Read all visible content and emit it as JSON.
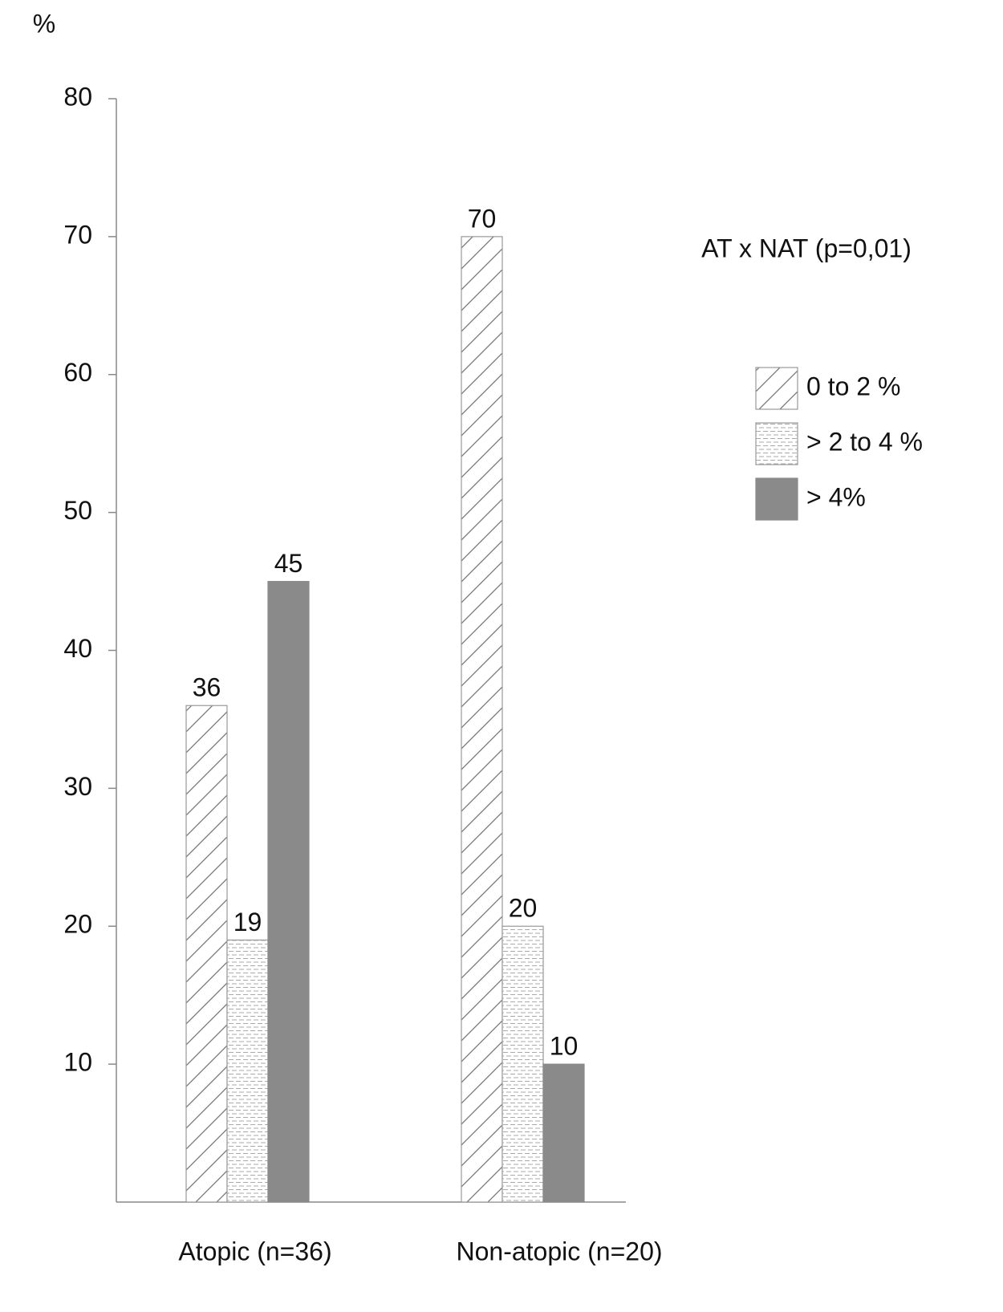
{
  "chart_data": {
    "type": "bar",
    "y_label": "%",
    "annotation": "AT x NAT (p=0,01)",
    "categories": [
      "Atopic (n=36)",
      "Non-atopic (n=20)"
    ],
    "series": [
      {
        "name": "0 to 2 %",
        "pattern": "hatch",
        "color": "#ffffff",
        "values": [
          36,
          70
        ]
      },
      {
        "name": "> 2 to 4 %",
        "pattern": "dash",
        "color": "#ffffff",
        "values": [
          19,
          20
        ]
      },
      {
        "name": "> 4%",
        "pattern": "solid",
        "color": "#8a8a8a",
        "values": [
          45,
          10
        ]
      }
    ],
    "ylim": [
      0,
      80
    ],
    "yticks": [
      10,
      20,
      30,
      40,
      50,
      60,
      70,
      80
    ],
    "legend": "right"
  }
}
